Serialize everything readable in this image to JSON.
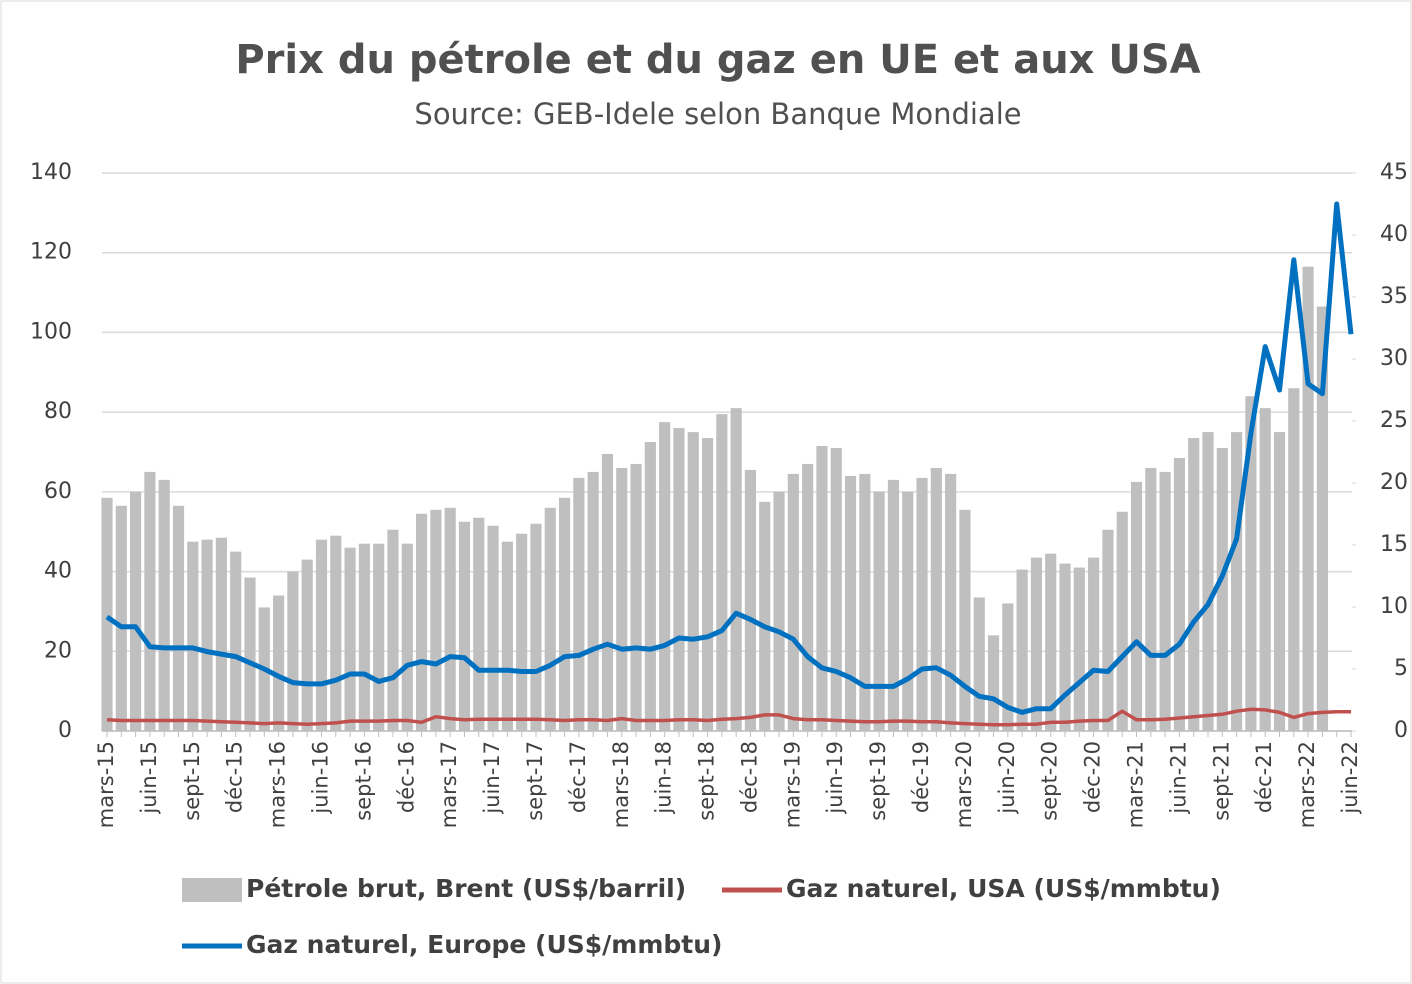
{
  "chart_data": {
    "type": "bar_line",
    "title": "Prix du pétrole et du gaz en UE et aux USA",
    "subtitle": "Source: GEB-Idele selon Banque Mondiale",
    "categories": [
      "mars-15",
      null,
      null,
      "juin-15",
      null,
      null,
      "sept-15",
      null,
      null,
      "déc-15",
      null,
      null,
      "mars-16",
      null,
      null,
      "juin-16",
      null,
      null,
      "sept-16",
      null,
      null,
      "déc-16",
      null,
      null,
      "mars-17",
      null,
      null,
      "juin-17",
      null,
      null,
      "sept-17",
      null,
      null,
      "déc-17",
      null,
      null,
      "mars-18",
      null,
      null,
      "juin-18",
      null,
      null,
      "sept-18",
      null,
      null,
      "déc-18",
      null,
      null,
      "mars-19",
      null,
      null,
      "juin-19",
      null,
      null,
      "sept-19",
      null,
      null,
      "déc-19",
      null,
      null,
      "mars-20",
      null,
      null,
      "juin-20",
      null,
      null,
      "sept-20",
      null,
      null,
      "déc-20",
      null,
      null,
      "mars-21",
      null,
      null,
      "juin-21",
      null,
      null,
      "sept-21",
      null,
      null,
      "déc-21",
      null,
      null,
      "mars-22",
      null,
      null,
      "juin-22"
    ],
    "series": [
      {
        "name": "Pétrole brut, Brent (US$/barril)",
        "type": "bar",
        "color": "#bfbfbf",
        "axis": "y",
        "values": [
          58.5,
          56.5,
          60,
          65,
          63,
          56.5,
          47.5,
          48,
          48.5,
          45,
          38.5,
          31,
          34,
          40,
          43,
          48,
          49,
          46,
          47,
          47,
          50.5,
          47,
          54.5,
          55.5,
          56,
          52.5,
          53.5,
          51.5,
          47.5,
          49.5,
          52,
          56,
          58.5,
          63.5,
          65,
          69.5,
          66,
          67,
          72.5,
          77.5,
          76,
          75,
          73.5,
          79.5,
          81,
          65.5,
          57.5,
          60,
          64.5,
          67,
          71.5,
          71,
          64,
          64.5,
          60,
          63,
          60,
          63.5,
          66,
          64.5,
          55.5,
          33.5,
          24,
          32,
          40.5,
          43.5,
          44.5,
          42,
          41,
          43.5,
          50.5,
          55,
          62.5,
          66,
          65,
          68.5,
          73.5,
          75,
          71,
          75,
          84,
          81,
          75,
          86,
          116.5,
          106.5,
          null,
          null
        ]
      },
      {
        "name": "Gaz naturel, USA (US$/mmbtu)",
        "type": "line",
        "color": "#c0504d",
        "axis": "y2",
        "values": [
          0.9,
          0.85,
          0.85,
          0.85,
          0.85,
          0.85,
          0.85,
          0.8,
          0.75,
          0.7,
          0.65,
          0.6,
          0.65,
          0.6,
          0.55,
          0.6,
          0.65,
          0.8,
          0.8,
          0.8,
          0.85,
          0.85,
          0.7,
          1.15,
          1.0,
          0.9,
          0.95,
          0.95,
          0.95,
          0.95,
          0.95,
          0.9,
          0.85,
          0.9,
          0.9,
          0.85,
          1.0,
          0.85,
          0.85,
          0.85,
          0.9,
          0.9,
          0.85,
          0.95,
          1.0,
          1.1,
          1.3,
          1.3,
          1.0,
          0.9,
          0.9,
          0.85,
          0.8,
          0.75,
          0.75,
          0.8,
          0.8,
          0.75,
          0.75,
          0.65,
          0.6,
          0.55,
          0.5,
          0.5,
          0.55,
          0.55,
          0.7,
          0.7,
          0.8,
          0.85,
          0.85,
          1.6,
          0.9,
          0.9,
          0.95,
          1.05,
          1.15,
          1.25,
          1.35,
          1.6,
          1.75,
          1.7,
          1.5,
          1.1,
          1.4,
          1.5,
          1.55,
          1.55
        ]
      },
      {
        "name": "Gaz naturel, Europe (US$/mmbtu)",
        "type": "line",
        "color": "#0070c0",
        "axis": "y2",
        "values": [
          9.2,
          8.4,
          8.4,
          6.8,
          6.7,
          6.7,
          6.7,
          6.4,
          6.2,
          6.0,
          5.5,
          5.0,
          4.4,
          3.9,
          3.8,
          3.8,
          4.1,
          4.6,
          4.6,
          4.0,
          4.3,
          5.3,
          5.6,
          5.4,
          6.0,
          5.9,
          4.9,
          4.9,
          4.9,
          4.8,
          4.8,
          5.3,
          6.0,
          6.1,
          6.6,
          7.0,
          6.6,
          6.7,
          6.6,
          6.9,
          7.5,
          7.4,
          7.6,
          8.1,
          9.5,
          9.0,
          8.4,
          8.0,
          7.4,
          6.0,
          5.1,
          4.8,
          4.3,
          3.6,
          3.6,
          3.6,
          4.2,
          5.0,
          5.1,
          4.5,
          3.6,
          2.8,
          2.6,
          1.9,
          1.5,
          1.8,
          1.8,
          2.9,
          3.9,
          4.9,
          4.8,
          6.0,
          7.2,
          6.1,
          6.1,
          7.0,
          8.8,
          10.2,
          12.5,
          15.5,
          24,
          31,
          27.5,
          38,
          28,
          27.2,
          42.5,
          32
        ]
      }
    ],
    "ylim": [
      0,
      140
    ],
    "yticks": [
      0,
      20,
      40,
      60,
      80,
      100,
      120,
      140
    ],
    "y2lim": [
      0,
      45
    ],
    "y2ticks": [
      0,
      5,
      10,
      15,
      20,
      25,
      30,
      35,
      40,
      45
    ],
    "grid": true,
    "legend": "bottom"
  }
}
